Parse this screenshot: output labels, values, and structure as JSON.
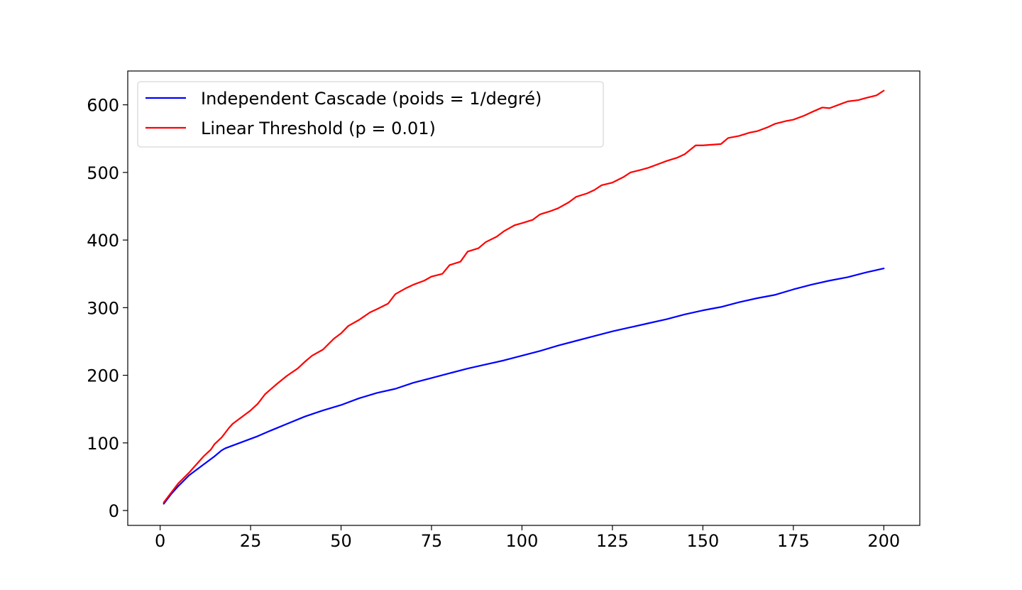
{
  "chart_data": {
    "type": "line",
    "title": "",
    "xlabel": "",
    "ylabel": "",
    "xlim": [
      -8.95,
      209.95
    ],
    "ylim": [
      -22,
      650
    ],
    "xticks": [
      "0",
      "25",
      "50",
      "75",
      "100",
      "125",
      "150",
      "175",
      "200"
    ],
    "yticks": [
      "0",
      "100",
      "200",
      "300",
      "400",
      "500",
      "600"
    ],
    "grid": false,
    "legend_position": "top-left",
    "series": [
      {
        "name": "Independent Cascade (poids = 1/degré)",
        "color": "#0000ff",
        "points": [
          [
            1,
            10
          ],
          [
            3,
            24
          ],
          [
            5,
            36
          ],
          [
            8,
            52
          ],
          [
            12,
            68
          ],
          [
            15,
            80
          ],
          [
            17,
            89
          ],
          [
            18,
            92
          ],
          [
            22,
            100
          ],
          [
            27,
            110
          ],
          [
            30,
            117
          ],
          [
            35,
            128
          ],
          [
            40,
            139
          ],
          [
            45,
            148
          ],
          [
            50,
            156
          ],
          [
            55,
            166
          ],
          [
            60,
            174
          ],
          [
            65,
            180
          ],
          [
            70,
            189
          ],
          [
            75,
            196
          ],
          [
            80,
            203
          ],
          [
            85,
            210
          ],
          [
            90,
            216
          ],
          [
            95,
            222
          ],
          [
            100,
            229
          ],
          [
            105,
            236
          ],
          [
            110,
            244
          ],
          [
            115,
            251
          ],
          [
            120,
            258
          ],
          [
            125,
            265
          ],
          [
            130,
            271
          ],
          [
            135,
            277
          ],
          [
            140,
            283
          ],
          [
            145,
            290
          ],
          [
            150,
            296
          ],
          [
            155,
            301
          ],
          [
            160,
            308
          ],
          [
            165,
            314
          ],
          [
            170,
            319
          ],
          [
            175,
            327
          ],
          [
            180,
            334
          ],
          [
            185,
            340
          ],
          [
            190,
            345
          ],
          [
            195,
            352
          ],
          [
            200,
            358
          ]
        ]
      },
      {
        "name": "Linear Threshold (p = 0.01)",
        "color": "#ff0000",
        "points": [
          [
            1,
            12
          ],
          [
            3,
            26
          ],
          [
            5,
            40
          ],
          [
            8,
            56
          ],
          [
            10,
            68
          ],
          [
            12,
            80
          ],
          [
            14,
            90
          ],
          [
            15,
            98
          ],
          [
            17,
            108
          ],
          [
            19,
            122
          ],
          [
            20,
            128
          ],
          [
            22,
            136
          ],
          [
            25,
            148
          ],
          [
            27,
            158
          ],
          [
            29,
            172
          ],
          [
            32,
            186
          ],
          [
            35,
            199
          ],
          [
            38,
            210
          ],
          [
            40,
            220
          ],
          [
            42,
            229
          ],
          [
            45,
            238
          ],
          [
            48,
            254
          ],
          [
            50,
            262
          ],
          [
            52,
            273
          ],
          [
            55,
            282
          ],
          [
            58,
            293
          ],
          [
            60,
            298
          ],
          [
            63,
            306
          ],
          [
            65,
            320
          ],
          [
            68,
            329
          ],
          [
            70,
            334
          ],
          [
            73,
            340
          ],
          [
            75,
            346
          ],
          [
            78,
            350
          ],
          [
            80,
            363
          ],
          [
            83,
            368
          ],
          [
            85,
            383
          ],
          [
            88,
            388
          ],
          [
            90,
            397
          ],
          [
            93,
            405
          ],
          [
            95,
            413
          ],
          [
            98,
            422
          ],
          [
            100,
            425
          ],
          [
            103,
            430
          ],
          [
            105,
            438
          ],
          [
            108,
            443
          ],
          [
            110,
            447
          ],
          [
            113,
            456
          ],
          [
            115,
            464
          ],
          [
            118,
            469
          ],
          [
            120,
            474
          ],
          [
            122,
            481
          ],
          [
            125,
            485
          ],
          [
            128,
            493
          ],
          [
            130,
            500
          ],
          [
            133,
            504
          ],
          [
            135,
            507
          ],
          [
            138,
            513
          ],
          [
            140,
            517
          ],
          [
            143,
            522
          ],
          [
            145,
            527
          ],
          [
            148,
            540
          ],
          [
            150,
            540
          ],
          [
            155,
            542
          ],
          [
            157,
            551
          ],
          [
            160,
            554
          ],
          [
            163,
            559
          ],
          [
            165,
            561
          ],
          [
            168,
            567
          ],
          [
            170,
            572
          ],
          [
            173,
            576
          ],
          [
            175,
            578
          ],
          [
            178,
            584
          ],
          [
            180,
            589
          ],
          [
            183,
            596
          ],
          [
            185,
            595
          ],
          [
            188,
            601
          ],
          [
            190,
            605
          ],
          [
            193,
            607
          ],
          [
            195,
            610
          ],
          [
            198,
            614
          ],
          [
            200,
            621
          ]
        ]
      }
    ]
  }
}
